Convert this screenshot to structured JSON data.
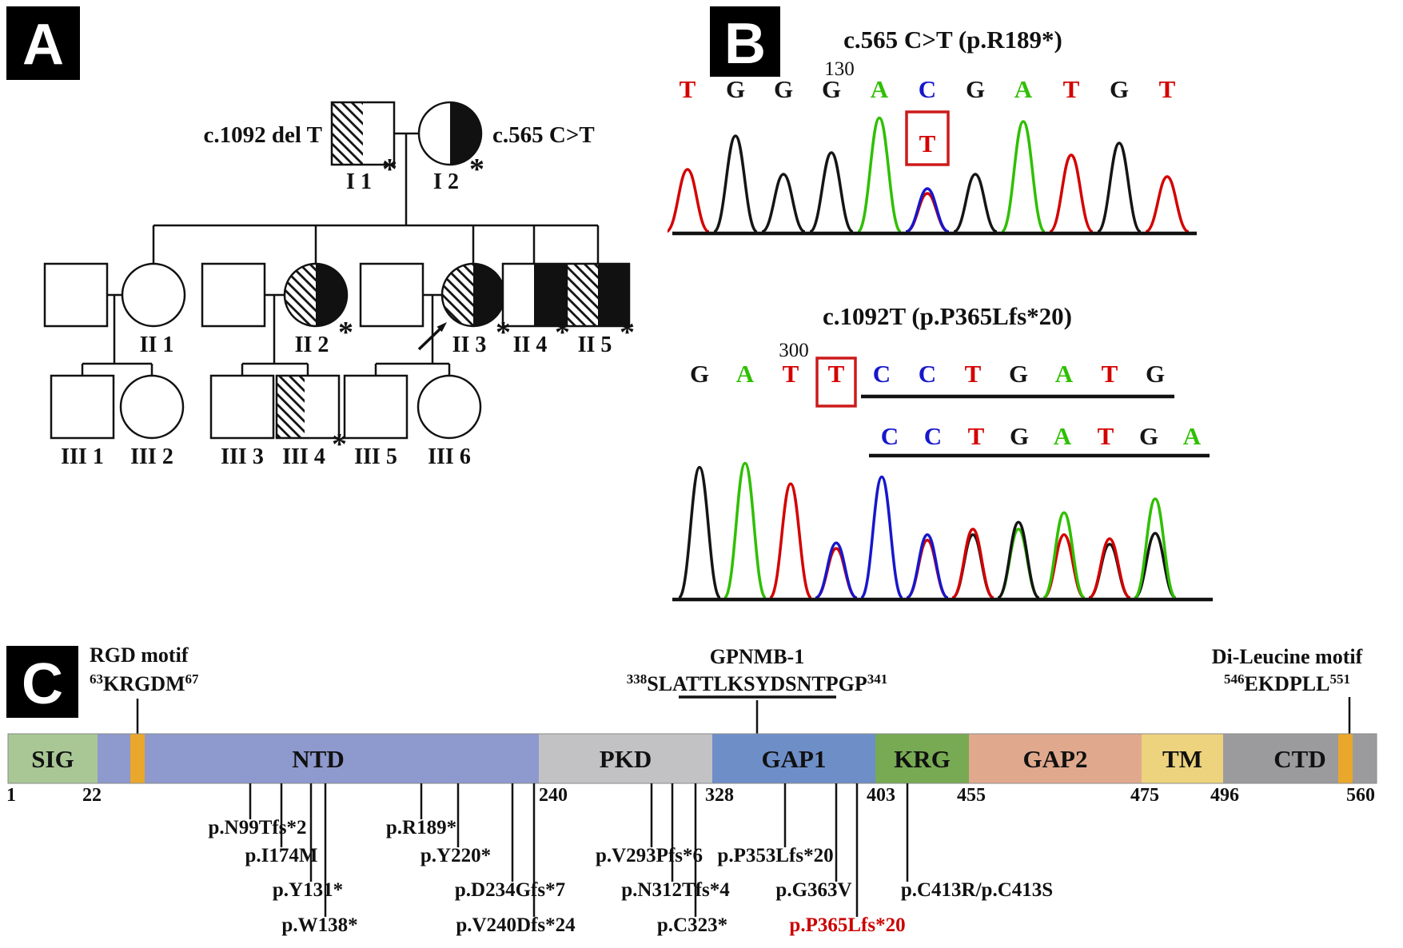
{
  "figure": {
    "panel_a_label": "A",
    "panel_b_label": "B",
    "panel_c_label": "C"
  },
  "pedigree": {
    "father_allele": "c.1092 del T",
    "mother_allele": "c.565 C>T",
    "carrier_mark": "*",
    "labels": {
      "I1": "I 1",
      "I2": "I 2",
      "II1": "II 1",
      "II2": "II 2",
      "II3": "II 3",
      "II4": "II 4",
      "II5": "II 5",
      "III1": "III 1",
      "III2": "III 2",
      "III3": "III 3",
      "III4": "III 4",
      "III5": "III 5",
      "III6": "III 6"
    }
  },
  "chromatograms": {
    "colors": {
      "A": "#2fbf00",
      "T": "#d40000",
      "G": "#151515",
      "C": "#1717cc"
    },
    "top": {
      "title": "c.565 C>T (p.R189*)",
      "position_label": "130",
      "variant_base": {
        "base": "T",
        "color": "#d40000"
      },
      "sequence": [
        {
          "base": "T",
          "color": "#d40000"
        },
        {
          "base": "G",
          "color": "#151515"
        },
        {
          "base": "G",
          "color": "#151515"
        },
        {
          "base": "G",
          "color": "#151515"
        },
        {
          "base": "A",
          "color": "#2fbf00"
        },
        {
          "base": "C",
          "color": "#1717cc"
        },
        {
          "base": "G",
          "color": "#151515"
        },
        {
          "base": "A",
          "color": "#2fbf00"
        },
        {
          "base": "T",
          "color": "#d40000"
        },
        {
          "base": "G",
          "color": "#151515"
        },
        {
          "base": "T",
          "color": "#d40000"
        }
      ],
      "peaks": [
        {
          "segments": [
            {
              "color": "#d40000",
              "h": 0.52
            }
          ]
        },
        {
          "segments": [
            {
              "color": "#151515",
              "h": 0.8
            }
          ]
        },
        {
          "segments": [
            {
              "color": "#151515",
              "h": 0.48
            }
          ]
        },
        {
          "segments": [
            {
              "color": "#151515",
              "h": 0.66
            }
          ]
        },
        {
          "segments": [
            {
              "color": "#2fbf00",
              "h": 0.95
            }
          ]
        },
        {
          "segments": [
            {
              "color": "#d40000",
              "h": 0.32
            },
            {
              "color": "#1717cc",
              "h": 0.36
            }
          ]
        },
        {
          "segments": [
            {
              "color": "#151515",
              "h": 0.48
            }
          ]
        },
        {
          "segments": [
            {
              "color": "#2fbf00",
              "h": 0.92
            }
          ]
        },
        {
          "segments": [
            {
              "color": "#d40000",
              "h": 0.64
            }
          ]
        },
        {
          "segments": [
            {
              "color": "#151515",
              "h": 0.74
            }
          ]
        },
        {
          "segments": [
            {
              "color": "#d40000",
              "h": 0.46
            }
          ]
        }
      ]
    },
    "bottom": {
      "title": "c.1092T (p.P365Lfs*20)",
      "position_label": "300",
      "sequence_row1": [
        {
          "base": "G",
          "color": "#151515"
        },
        {
          "base": "A",
          "color": "#2fbf00"
        },
        {
          "base": "T",
          "color": "#d40000"
        },
        {
          "base": "T",
          "color": "#d40000"
        },
        {
          "base": "C",
          "color": "#1717cc"
        },
        {
          "base": "C",
          "color": "#1717cc"
        },
        {
          "base": "T",
          "color": "#d40000"
        },
        {
          "base": "G",
          "color": "#151515"
        },
        {
          "base": "A",
          "color": "#2fbf00"
        },
        {
          "base": "T",
          "color": "#d40000"
        },
        {
          "base": "G",
          "color": "#151515"
        }
      ],
      "sequence_row2": [
        {
          "base": "C",
          "color": "#1717cc"
        },
        {
          "base": "C",
          "color": "#1717cc"
        },
        {
          "base": "T",
          "color": "#d40000"
        },
        {
          "base": "G",
          "color": "#151515"
        },
        {
          "base": "A",
          "color": "#2fbf00"
        },
        {
          "base": "T",
          "color": "#d40000"
        },
        {
          "base": "G",
          "color": "#151515"
        },
        {
          "base": "A",
          "color": "#2fbf00"
        }
      ],
      "peaks": [
        {
          "segments": [
            {
              "color": "#151515",
              "h": 0.95
            }
          ]
        },
        {
          "segments": [
            {
              "color": "#2fbf00",
              "h": 0.98
            }
          ]
        },
        {
          "segments": [
            {
              "color": "#d40000",
              "h": 0.83
            }
          ]
        },
        {
          "segments": [
            {
              "color": "#d40000",
              "h": 0.36
            },
            {
              "color": "#1717cc",
              "h": 0.4
            }
          ]
        },
        {
          "segments": [
            {
              "color": "#1717cc",
              "h": 0.88
            }
          ]
        },
        {
          "segments": [
            {
              "color": "#d40000",
              "h": 0.42
            },
            {
              "color": "#1717cc",
              "h": 0.46
            }
          ]
        },
        {
          "segments": [
            {
              "color": "#151515",
              "h": 0.46
            },
            {
              "color": "#d40000",
              "h": 0.5
            }
          ]
        },
        {
          "segments": [
            {
              "color": "#2fbf00",
              "h": 0.5
            },
            {
              "color": "#151515",
              "h": 0.55
            }
          ]
        },
        {
          "segments": [
            {
              "color": "#d40000",
              "h": 0.46
            },
            {
              "color": "#2fbf00",
              "h": 0.62
            }
          ]
        },
        {
          "segments": [
            {
              "color": "#151515",
              "h": 0.39
            },
            {
              "color": "#d40000",
              "h": 0.43
            }
          ]
        },
        {
          "segments": [
            {
              "color": "#151515",
              "h": 0.47
            },
            {
              "color": "#2fbf00",
              "h": 0.72
            }
          ]
        }
      ]
    }
  },
  "protein": {
    "motif_stripe_color": "#e9a72c",
    "motifs": {
      "rgd": {
        "name": "RGD motif",
        "start_sup": "63",
        "seq": "KRGDM",
        "end_sup": "67"
      },
      "gpnmb1": {
        "name": "GPNMB-1",
        "start_sup": "338",
        "seq_start": "S",
        "seq_underlined": "LATTLKSYDSNTPG",
        "seq_end": "P",
        "end_sup": "341"
      },
      "dileucine": {
        "name": "Di-Leucine motif",
        "start_sup": "546",
        "seq": "EKDPLL",
        "end_sup": "551"
      }
    },
    "domains": [
      {
        "name": "SIG",
        "color": "#a8c795"
      },
      {
        "name": "NTD",
        "color": "#8e99cd"
      },
      {
        "name": "PKD",
        "color": "#c2c2c4"
      },
      {
        "name": "GAP1",
        "color": "#6e8ec8"
      },
      {
        "name": "KRG",
        "color": "#77aa52"
      },
      {
        "name": "GAP2",
        "color": "#e0a98e"
      },
      {
        "name": "TM",
        "color": "#edd37d"
      },
      {
        "name": "CTD",
        "color": "#9b9b9d"
      }
    ],
    "boundaries": [
      "1",
      "22",
      "240",
      "328",
      "403",
      "455",
      "475",
      "496",
      "560"
    ],
    "mutations": [
      {
        "label": "p.N99Tfs*2",
        "row": 1,
        "color": "#111111"
      },
      {
        "label": "p.I174M",
        "row": 2,
        "color": "#111111"
      },
      {
        "label": "p.Y131*",
        "row": 3,
        "color": "#111111"
      },
      {
        "label": "p.W138*",
        "row": 4,
        "color": "#111111"
      },
      {
        "label": "p.R189*",
        "row": 1,
        "color": "#111111"
      },
      {
        "label": "p.Y220*",
        "row": 2,
        "color": "#111111"
      },
      {
        "label": "p.D234Gfs*7",
        "row": 3,
        "color": "#111111"
      },
      {
        "label": "p.V240Dfs*24",
        "row": 4,
        "color": "#111111"
      },
      {
        "label": "p.V293Pfs*6",
        "row": 2,
        "color": "#111111"
      },
      {
        "label": "p.N312Tfs*4",
        "row": 3,
        "color": "#111111"
      },
      {
        "label": "p.C323*",
        "row": 4,
        "color": "#111111"
      },
      {
        "label": "p.P353Lfs*20",
        "row": 2,
        "color": "#111111"
      },
      {
        "label": "p.G363V",
        "row": 3,
        "color": "#111111"
      },
      {
        "label": "p.P365Lfs*20",
        "row": 4,
        "color": "#cc0000"
      },
      {
        "label": "p.C413R/p.C413S",
        "row": 3,
        "color": "#111111"
      }
    ]
  }
}
